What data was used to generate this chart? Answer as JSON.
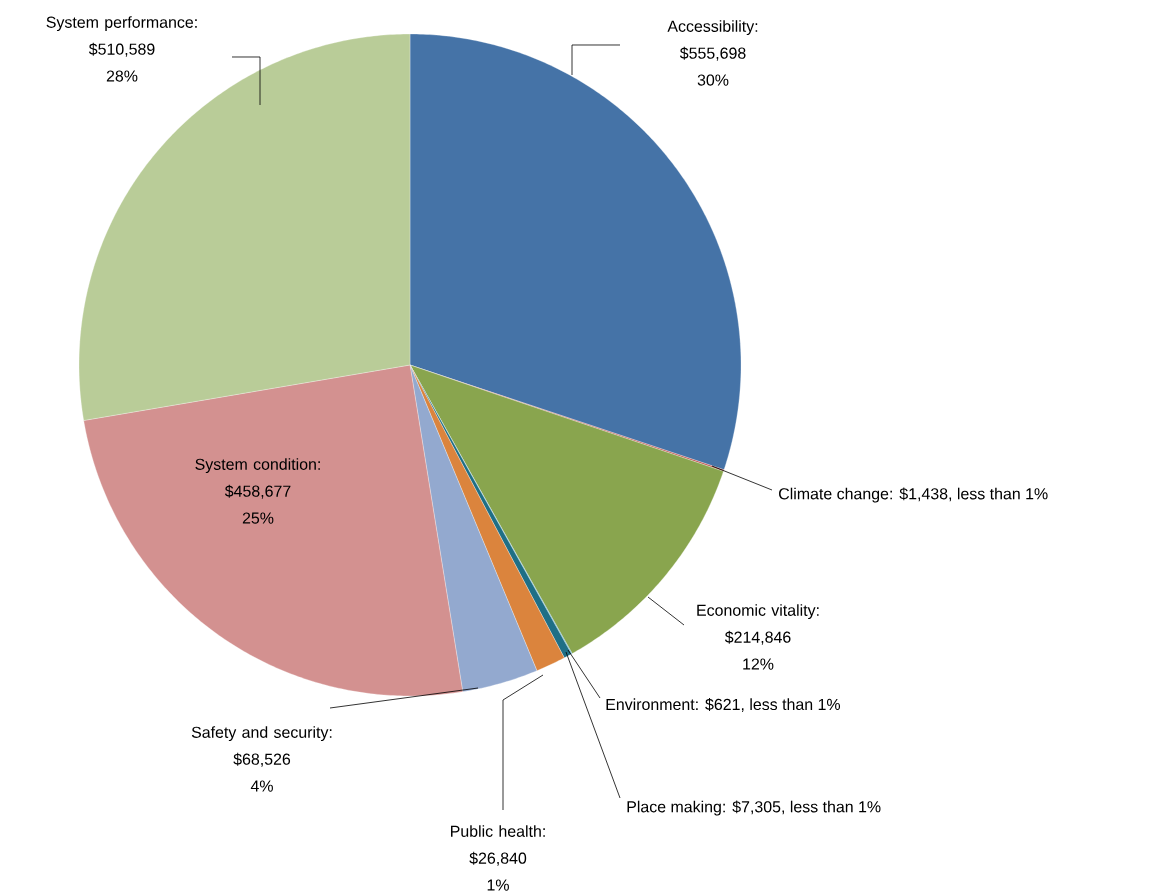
{
  "chart_data": {
    "type": "pie",
    "categories": [
      "Accessibility",
      "Climate change",
      "Economic vitality",
      "Environment",
      "Place making",
      "Public health",
      "Safety and security",
      "System condition",
      "System performance"
    ],
    "values": [
      555698,
      1438,
      214846,
      621,
      7305,
      26840,
      68526,
      458677,
      510589
    ],
    "colors": [
      "#4573a7",
      "#c0504d",
      "#89a54e",
      "#3a9cb8",
      "#1f6f86",
      "#db843d",
      "#93a9cf",
      "#d39190",
      "#b9cc98"
    ],
    "value_labels": [
      ": $555,698 30%",
      ": $1,438, less than 1%",
      ": $214,846 12%",
      ": $621, less than 1%",
      ": $7,305, less than 1%",
      ": $26,840 1%",
      ": $68,526 4%",
      ": $458,677 25%",
      ": $510,589 28%"
    ]
  }
}
